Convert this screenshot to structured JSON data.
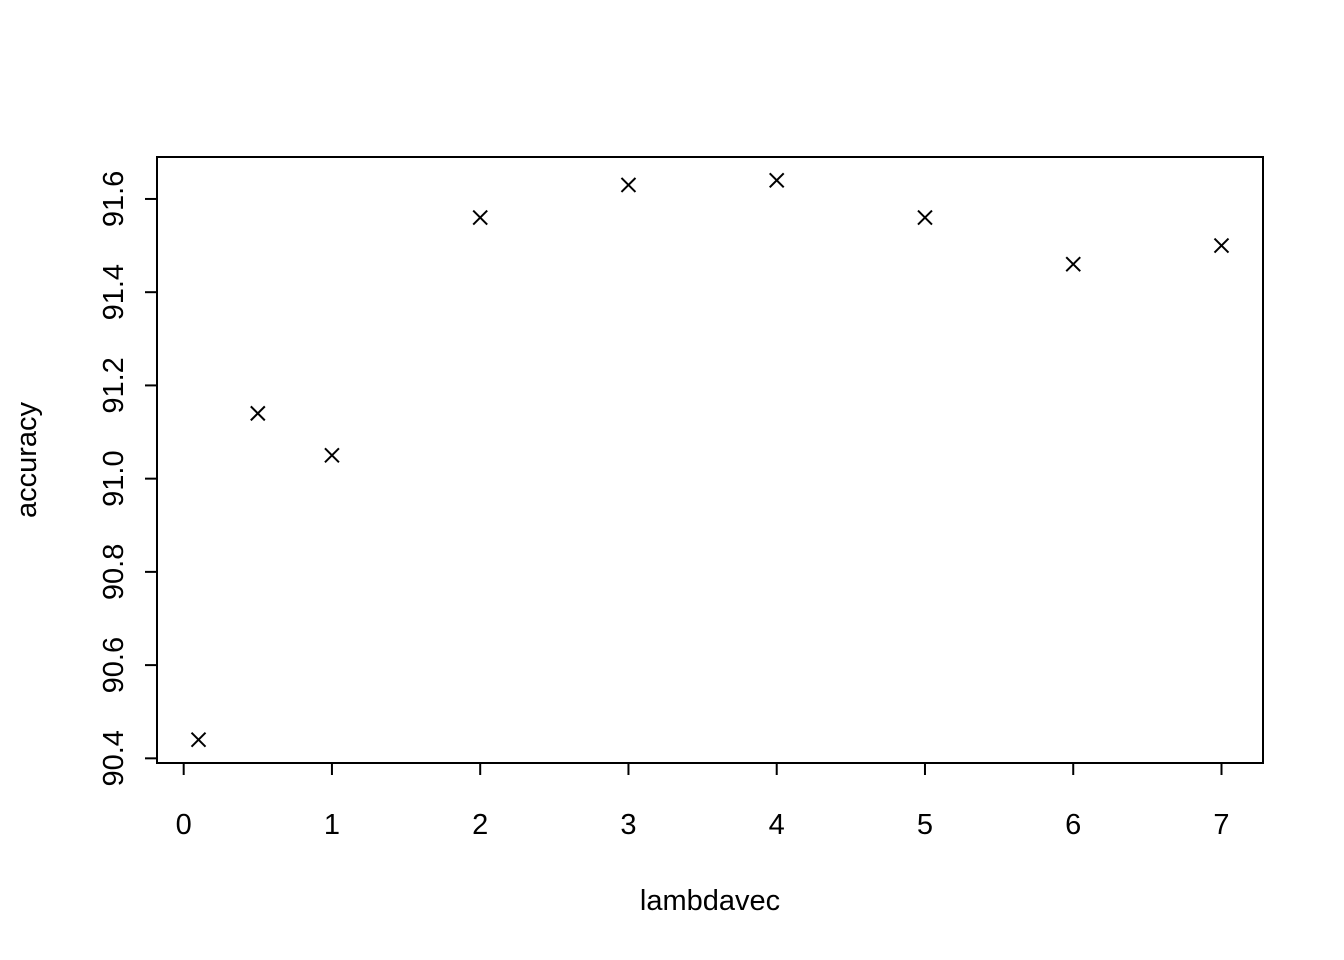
{
  "chart_data": {
    "type": "scatter",
    "xlabel": "lambdavec",
    "ylabel": "accuracy",
    "marker": "x",
    "marker_color": "#000000",
    "grid": false,
    "xlim": [
      -0.18,
      7.28
    ],
    "ylim": [
      90.39,
      91.69
    ],
    "x_ticks": [
      0,
      1,
      2,
      3,
      4,
      5,
      6,
      7
    ],
    "x_tick_labels": [
      "0",
      "1",
      "2",
      "3",
      "4",
      "5",
      "6",
      "7"
    ],
    "y_ticks": [
      90.4,
      90.6,
      90.8,
      91.0,
      91.2,
      91.4,
      91.6
    ],
    "y_tick_labels": [
      "90.4",
      "90.6",
      "90.8",
      "91.0",
      "91.2",
      "91.4",
      "91.6"
    ],
    "points": [
      {
        "x": 0.1,
        "y": 90.44
      },
      {
        "x": 0.5,
        "y": 91.14
      },
      {
        "x": 1,
        "y": 91.05
      },
      {
        "x": 2,
        "y": 91.56
      },
      {
        "x": 3,
        "y": 91.63
      },
      {
        "x": 4,
        "y": 91.64
      },
      {
        "x": 5,
        "y": 91.56
      },
      {
        "x": 6,
        "y": 91.46
      },
      {
        "x": 7,
        "y": 91.5
      }
    ]
  }
}
